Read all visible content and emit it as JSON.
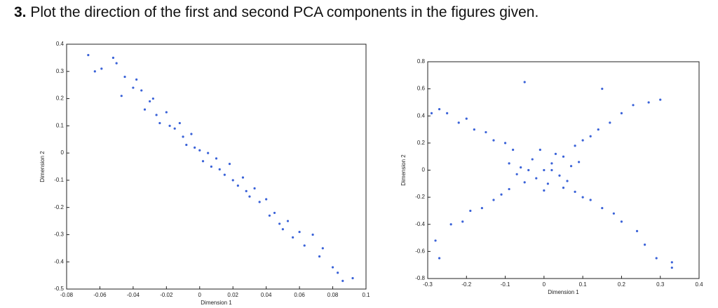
{
  "question": {
    "number": "3.",
    "text": "Plot the direction of the first and second PCA components in the figures given."
  },
  "chart_data": [
    {
      "type": "scatter",
      "xlabel": "Dimension 1",
      "ylabel": "Dimension 2",
      "color": "#3a62d8",
      "xlim": [
        -0.08,
        0.1
      ],
      "ylim": [
        -0.5,
        0.4
      ],
      "xticks": [
        -0.08,
        -0.06,
        -0.04,
        -0.02,
        0,
        0.02,
        0.04,
        0.06,
        0.08,
        0.1
      ],
      "yticks": [
        -0.5,
        -0.4,
        -0.3,
        -0.2,
        -0.1,
        0,
        0.1,
        0.2,
        0.3,
        0.4
      ],
      "x": [
        -0.067,
        -0.063,
        -0.059,
        -0.052,
        -0.05,
        -0.045,
        -0.047,
        -0.04,
        -0.038,
        -0.035,
        -0.033,
        -0.03,
        -0.028,
        -0.026,
        -0.024,
        -0.02,
        -0.018,
        -0.015,
        -0.012,
        -0.01,
        -0.008,
        -0.005,
        -0.003,
        0,
        0.002,
        0.005,
        0.007,
        0.01,
        0.012,
        0.015,
        0.018,
        0.02,
        0.023,
        0.026,
        0.028,
        0.03,
        0.033,
        0.036,
        0.04,
        0.042,
        0.045,
        0.048,
        0.05,
        0.053,
        0.056,
        0.06,
        0.063,
        0.068,
        0.072,
        0.074,
        0.08,
        0.083,
        0.086,
        0.092
      ],
      "values": [
        0.36,
        0.3,
        0.31,
        0.35,
        0.33,
        0.28,
        0.21,
        0.24,
        0.27,
        0.23,
        0.16,
        0.19,
        0.2,
        0.14,
        0.11,
        0.15,
        0.1,
        0.09,
        0.11,
        0.06,
        0.03,
        0.07,
        0.02,
        0.01,
        -0.03,
        0,
        -0.05,
        -0.02,
        -0.06,
        -0.08,
        -0.04,
        -0.1,
        -0.12,
        -0.09,
        -0.14,
        -0.16,
        -0.13,
        -0.18,
        -0.17,
        -0.23,
        -0.22,
        -0.26,
        -0.28,
        -0.25,
        -0.31,
        -0.29,
        -0.34,
        -0.3,
        -0.38,
        -0.35,
        -0.42,
        -0.44,
        -0.47,
        -0.46
      ]
    },
    {
      "type": "scatter",
      "xlabel": "Dimension 1",
      "ylabel": "Dimension 2",
      "color": "#3a62d8",
      "xlim": [
        -0.3,
        0.4
      ],
      "ylim": [
        -0.8,
        0.8
      ],
      "xticks": [
        -0.3,
        -0.2,
        -0.1,
        0,
        0.1,
        0.2,
        0.3,
        0.4
      ],
      "yticks": [
        -0.8,
        -0.6,
        -0.4,
        -0.2,
        0,
        0.2,
        0.4,
        0.6,
        0.8
      ],
      "x": [
        -0.27,
        -0.25,
        -0.22,
        -0.2,
        -0.18,
        -0.15,
        -0.13,
        -0.1,
        -0.08,
        -0.28,
        -0.24,
        -0.21,
        -0.19,
        -0.16,
        -0.13,
        -0.11,
        -0.09,
        0.08,
        0.1,
        0.12,
        0.14,
        0.17,
        0.2,
        0.23,
        0.27,
        0.3,
        0.08,
        0.1,
        0.12,
        0.15,
        0.18,
        0.2,
        0.24,
        0.26,
        0.29,
        0.33,
        0.33,
        -0.27,
        -0.29,
        0.15,
        -0.05,
        0,
        0.02,
        -0.03,
        0.04,
        -0.02,
        0.05,
        -0.06,
        0.01,
        0.06,
        -0.05,
        0.03,
        -0.01,
        0.07,
        -0.07,
        0,
        0.09,
        -0.09,
        0.02,
        -0.04,
        0.05
      ],
      "values": [
        0.45,
        0.42,
        0.35,
        0.38,
        0.3,
        0.28,
        0.22,
        0.2,
        0.15,
        -0.52,
        -0.4,
        -0.38,
        -0.3,
        -0.28,
        -0.22,
        -0.18,
        -0.14,
        0.18,
        0.22,
        0.25,
        0.3,
        0.35,
        0.42,
        0.48,
        0.5,
        0.52,
        -0.16,
        -0.2,
        -0.22,
        -0.28,
        -0.32,
        -0.38,
        -0.45,
        -0.55,
        -0.65,
        -0.72,
        -0.68,
        -0.65,
        0.42,
        0.6,
        0.65,
        0,
        0.05,
        0.08,
        -0.04,
        -0.06,
        0.1,
        0.02,
        -0.1,
        -0.08,
        -0.09,
        0.12,
        0.15,
        0.03,
        -0.03,
        -0.15,
        0.06,
        0.05,
        0,
        0,
        -0.13
      ]
    }
  ]
}
